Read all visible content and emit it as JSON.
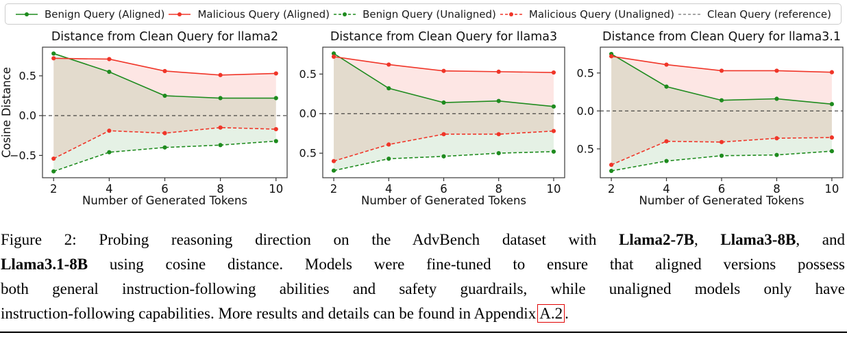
{
  "legend": {
    "items": [
      {
        "label": "Benign Query (Aligned)",
        "color": "#1e8b1e",
        "dash": false,
        "marker": true
      },
      {
        "label": "Malicious Query (Aligned)",
        "color": "#f03528",
        "dash": false,
        "marker": true
      },
      {
        "label": "Benign Query (Unaligned)",
        "color": "#1e8b1e",
        "dash": true,
        "marker": true
      },
      {
        "label": "Malicious Query (Unaligned)",
        "color": "#f03528",
        "dash": true,
        "marker": true
      },
      {
        "label": "Clean Query (reference)",
        "color": "#888888",
        "dash": true,
        "marker": false
      }
    ]
  },
  "chart_data": [
    {
      "type": "line",
      "title": "Distance from Clean Query for llama2",
      "xlabel": "Number of Generated Tokens",
      "ylabel": "Cosine Distance",
      "x": [
        2,
        4,
        6,
        8,
        10
      ],
      "xticks": [
        2,
        4,
        6,
        8,
        10
      ],
      "yticks": [
        0.5,
        0.0,
        -0.5
      ],
      "xlim": [
        1.6,
        10.4
      ],
      "ylim": [
        -0.78,
        0.86
      ],
      "grid": false,
      "reference": {
        "label": "Clean Query (reference)",
        "y": 0,
        "color": "#222222"
      },
      "series": [
        {
          "id": "benign-aligned",
          "name": "Benign Query (Aligned)",
          "color": "#1e8b1e",
          "dash": false,
          "values": [
            0.78,
            0.55,
            0.25,
            0.22,
            0.22
          ]
        },
        {
          "id": "malicious-aligned",
          "name": "Malicious Query (Aligned)",
          "color": "#f03528",
          "dash": false,
          "values": [
            0.72,
            0.71,
            0.56,
            0.51,
            0.53
          ]
        },
        {
          "id": "benign-unaligned",
          "name": "Benign Query (Unaligned)",
          "color": "#1e8b1e",
          "dash": true,
          "values": [
            -0.7,
            -0.46,
            -0.4,
            -0.37,
            -0.32
          ]
        },
        {
          "id": "malicious-unaligned",
          "name": "Malicious Query (Unaligned)",
          "color": "#f03528",
          "dash": true,
          "values": [
            -0.54,
            -0.19,
            -0.22,
            -0.15,
            -0.17
          ]
        }
      ],
      "fills": [
        {
          "between": [
            1,
            3
          ],
          "color": "rgba(240,60,50,0.13)"
        },
        {
          "between": [
            0,
            2
          ],
          "color": "rgba(40,140,40,0.12)"
        }
      ]
    },
    {
      "type": "line",
      "title": "Distance from Clean Query for llama3",
      "xlabel": "Number of Generated Tokens",
      "ylabel": "",
      "x": [
        2,
        4,
        6,
        8,
        10
      ],
      "xticks": [
        2,
        4,
        6,
        8,
        10
      ],
      "yticks": [
        0.5,
        0.0,
        -0.5
      ],
      "xlim": [
        1.6,
        10.4
      ],
      "ylim": [
        -0.81,
        0.84
      ],
      "grid": false,
      "reference": {
        "label": "Clean Query (reference)",
        "y": 0,
        "color": "#222222"
      },
      "series": [
        {
          "id": "benign-aligned",
          "name": "Benign Query (Aligned)",
          "color": "#1e8b1e",
          "dash": false,
          "values": [
            0.76,
            0.32,
            0.14,
            0.16,
            0.09
          ]
        },
        {
          "id": "malicious-aligned",
          "name": "Malicious Query (Aligned)",
          "color": "#f03528",
          "dash": false,
          "values": [
            0.72,
            0.62,
            0.54,
            0.53,
            0.52
          ]
        },
        {
          "id": "benign-unaligned",
          "name": "Benign Query (Unaligned)",
          "color": "#1e8b1e",
          "dash": true,
          "values": [
            -0.72,
            -0.57,
            -0.54,
            -0.5,
            -0.48
          ]
        },
        {
          "id": "malicious-unaligned",
          "name": "Malicious Query (Unaligned)",
          "color": "#f03528",
          "dash": true,
          "values": [
            -0.6,
            -0.39,
            -0.26,
            -0.26,
            -0.22
          ]
        }
      ],
      "fills": [
        {
          "between": [
            1,
            3
          ],
          "color": "rgba(240,60,50,0.13)"
        },
        {
          "between": [
            0,
            2
          ],
          "color": "rgba(40,140,40,0.12)"
        }
      ]
    },
    {
      "type": "line",
      "title": "Distance from Clean Query for llama3.1",
      "xlabel": "Number of Generated Tokens",
      "ylabel": "",
      "x": [
        2,
        4,
        6,
        8,
        10
      ],
      "xticks": [
        2,
        4,
        6,
        8,
        10
      ],
      "yticks": [
        0.5,
        0.0,
        -0.5
      ],
      "xlim": [
        1.6,
        10.4
      ],
      "ylim": [
        -0.88,
        0.84
      ],
      "grid": false,
      "reference": {
        "label": "Clean Query (reference)",
        "y": 0,
        "color": "#222222"
      },
      "series": [
        {
          "id": "benign-aligned",
          "name": "Benign Query (Aligned)",
          "color": "#1e8b1e",
          "dash": false,
          "values": [
            0.75,
            0.32,
            0.14,
            0.16,
            0.09
          ]
        },
        {
          "id": "malicious-aligned",
          "name": "Malicious Query (Aligned)",
          "color": "#f03528",
          "dash": false,
          "values": [
            0.72,
            0.61,
            0.53,
            0.53,
            0.51
          ]
        },
        {
          "id": "benign-unaligned",
          "name": "Benign Query (Unaligned)",
          "color": "#1e8b1e",
          "dash": true,
          "values": [
            -0.79,
            -0.66,
            -0.59,
            -0.58,
            -0.53
          ]
        },
        {
          "id": "malicious-unaligned",
          "name": "Malicious Query (Unaligned)",
          "color": "#f03528",
          "dash": true,
          "values": [
            -0.71,
            -0.4,
            -0.41,
            -0.36,
            -0.35
          ]
        }
      ],
      "fills": [
        {
          "between": [
            1,
            3
          ],
          "color": "rgba(240,60,50,0.13)"
        },
        {
          "between": [
            0,
            2
          ],
          "color": "rgba(40,140,40,0.12)"
        }
      ]
    }
  ],
  "caption": {
    "lines": [
      {
        "justify": true,
        "segments": [
          {
            "t": "Figure 2: Probing reasoning direction on the AdvBench dataset with "
          },
          {
            "t": "Llama2-7B",
            "b": true
          },
          {
            "t": ", "
          },
          {
            "t": "Llama3-8B",
            "b": true
          },
          {
            "t": ", and"
          }
        ]
      },
      {
        "justify": true,
        "segments": [
          {
            "t": "Llama3.1-8B",
            "b": true
          },
          {
            "t": " using cosine distance. Models were fine-tuned to ensure that aligned versions possess"
          }
        ]
      },
      {
        "justify": true,
        "segments": [
          {
            "t": "both general instruction-following abilities and safety guardrails, while unaligned models only have"
          }
        ]
      },
      {
        "justify": false,
        "segments": [
          {
            "t": "instruction-following capabilities. More results and details can be found in Appendix"
          },
          {
            "t": "A.2",
            "box": true
          },
          {
            "t": "."
          }
        ]
      }
    ]
  }
}
